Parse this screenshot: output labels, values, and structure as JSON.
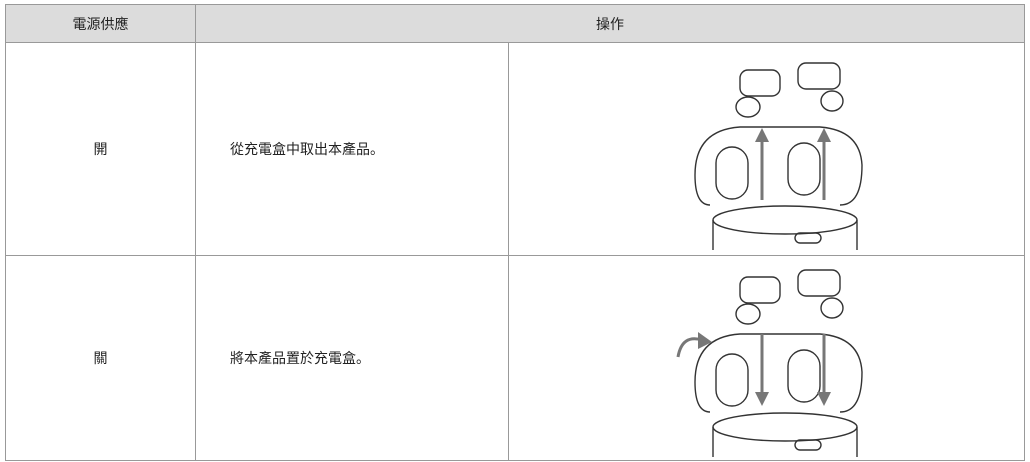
{
  "table": {
    "headers": [
      "電源供應",
      "操作"
    ],
    "rows": [
      [
        "開",
        "從充電盒中取出本產品。"
      ],
      [
        "關",
        "將本產品置於充電盒。"
      ]
    ]
  }
}
